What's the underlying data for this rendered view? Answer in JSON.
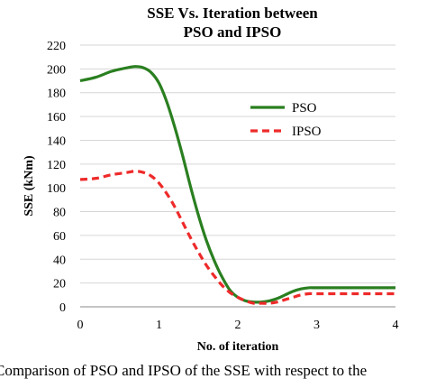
{
  "chart_data": {
    "type": "line",
    "title_lines": [
      "SSE Vs. Iteration between",
      "PSO and IPSO"
    ],
    "xlabel": "No. of iteration",
    "ylabel": "SSE (kNm)",
    "xlim": [
      0,
      4
    ],
    "ylim": [
      0,
      220
    ],
    "xticks": [
      "0",
      "1",
      "2",
      "3",
      "4"
    ],
    "yticks": [
      "0",
      "20",
      "40",
      "60",
      "80",
      "100",
      "120",
      "140",
      "160",
      "180",
      "200",
      "220"
    ],
    "grid": true,
    "legend_position": "right",
    "series": [
      {
        "name": "PSO",
        "color": "#2a7f20",
        "style": "solid",
        "x": [
          0,
          0.2,
          0.4,
          0.6,
          0.7,
          0.8,
          0.9,
          1.0,
          1.1,
          1.2,
          1.3,
          1.4,
          1.5,
          1.6,
          1.7,
          1.8,
          1.9,
          2.0,
          2.1,
          2.2,
          2.3,
          2.4,
          2.5,
          2.6,
          2.7,
          2.8,
          2.9,
          3.0,
          3.5,
          4.0
        ],
        "y": [
          190,
          193,
          198,
          201,
          202,
          201,
          197,
          188,
          172,
          151,
          127,
          101,
          77,
          56,
          39,
          25,
          14,
          8,
          5,
          4,
          4,
          5,
          7,
          10,
          13,
          15,
          16,
          16,
          16,
          16
        ]
      },
      {
        "name": "IPSO",
        "color": "#ee2a2a",
        "style": "dashed",
        "x": [
          0,
          0.2,
          0.4,
          0.6,
          0.7,
          0.8,
          0.9,
          1.0,
          1.1,
          1.2,
          1.3,
          1.4,
          1.5,
          1.6,
          1.7,
          1.8,
          1.9,
          2.0,
          2.1,
          2.2,
          2.3,
          2.4,
          2.5,
          2.6,
          2.7,
          2.8,
          2.9,
          3.0,
          3.5,
          4.0
        ],
        "y": [
          107,
          108,
          111,
          113,
          114,
          113,
          110,
          104,
          95,
          84,
          71,
          58,
          46,
          35,
          26,
          18,
          12,
          8,
          5,
          3,
          3,
          3,
          4,
          6,
          8,
          10,
          11,
          11,
          11,
          11
        ]
      }
    ]
  },
  "caption": "Comparison of PSO and IPSO of the SSE with respect to the"
}
